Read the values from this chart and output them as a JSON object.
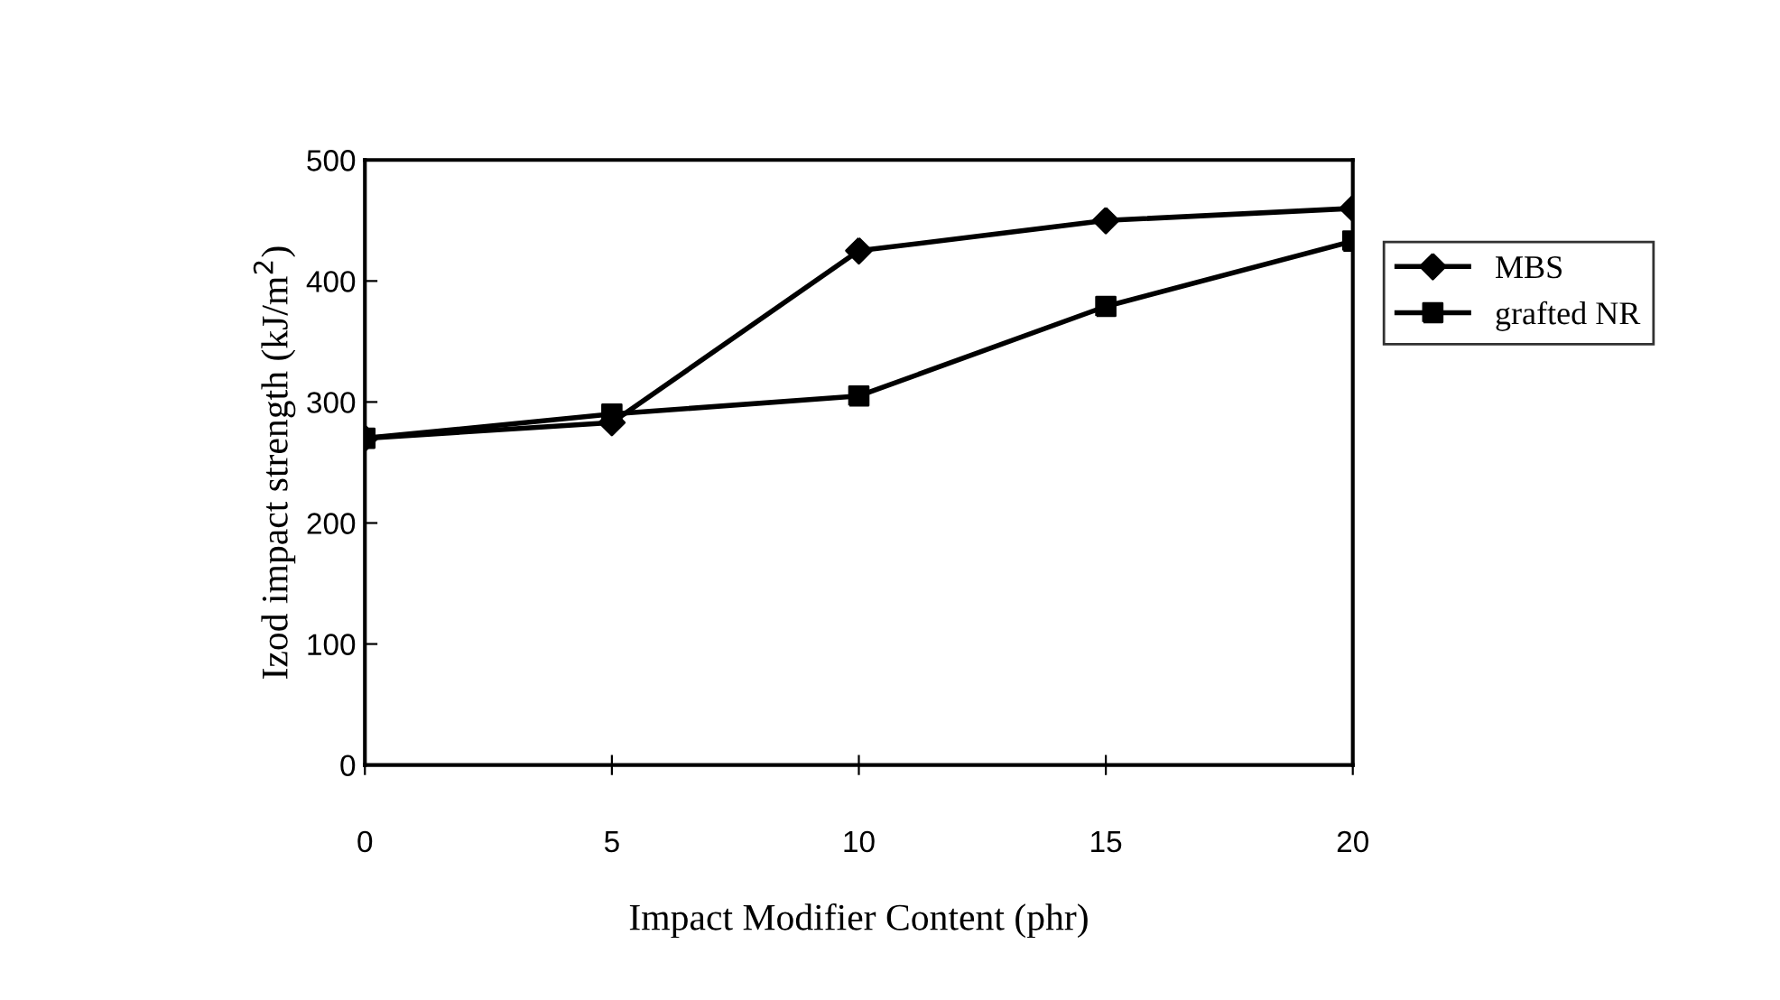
{
  "chart_data": {
    "type": "line",
    "xlabel": "Impact Modifier Content (phr)",
    "ylabel": "Izod impact strength (kJ/m$^{2}$)",
    "x": [
      0,
      5,
      10,
      15,
      20
    ],
    "xlim": [
      0,
      20
    ],
    "xticks": [
      0,
      5,
      10,
      15,
      20
    ],
    "ylim": [
      0,
      500
    ],
    "yticks": [
      0,
      100,
      200,
      300,
      400,
      500
    ],
    "grid": false,
    "legend": "right",
    "line_style": "solid",
    "series": [
      {
        "name": "MBS",
        "color": "#000000",
        "marker": "diamond",
        "values": [
          270,
          283,
          425,
          450,
          460
        ]
      },
      {
        "name": "grafted NR",
        "color": "#000000",
        "marker": "square",
        "values": [
          270,
          290,
          305,
          379,
          433
        ]
      }
    ]
  }
}
